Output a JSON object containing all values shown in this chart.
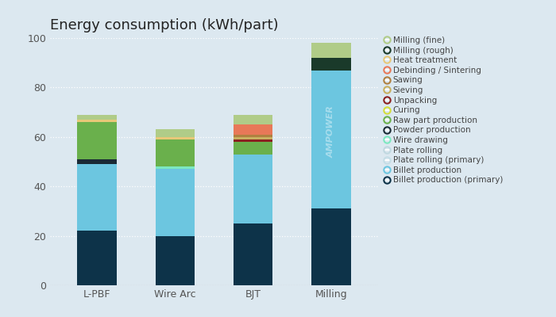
{
  "title": "Energy consumption (kWh/part)",
  "categories": [
    "L-PBF",
    "Wire Arc",
    "BJT",
    "Milling"
  ],
  "ylim": [
    0,
    100
  ],
  "yticks": [
    0,
    20,
    40,
    60,
    80,
    100
  ],
  "background_color": "#dce8f0",
  "gridcolor": "#ffffff",
  "layers": [
    {
      "label": "Billet production (primary)",
      "color": "#0d3349",
      "values": [
        22,
        20,
        25,
        31
      ]
    },
    {
      "label": "Billet production",
      "color": "#6cc6e0",
      "values": [
        27,
        27,
        28,
        56
      ]
    },
    {
      "label": "Plate rolling (primary)",
      "color": "#c5dde6",
      "values": [
        0,
        0,
        0,
        0
      ]
    },
    {
      "label": "Plate rolling",
      "color": "#c0d8e0",
      "values": [
        0,
        0,
        0,
        0
      ]
    },
    {
      "label": "Wire drawing",
      "color": "#7de8c0",
      "values": [
        0,
        1,
        0,
        0
      ]
    },
    {
      "label": "Powder production",
      "color": "#1a2a35",
      "values": [
        2,
        0,
        0,
        0
      ]
    },
    {
      "label": "Raw part production",
      "color": "#6ab04c",
      "values": [
        15,
        11,
        5,
        0
      ]
    },
    {
      "label": "Curing",
      "color": "#d4de3a",
      "values": [
        0,
        0,
        0,
        0
      ]
    },
    {
      "label": "Unpacking",
      "color": "#8b2020",
      "values": [
        0,
        0,
        1,
        0
      ]
    },
    {
      "label": "Sieving",
      "color": "#c8b060",
      "values": [
        0,
        0,
        1,
        0
      ]
    },
    {
      "label": "Sawing",
      "color": "#b08040",
      "values": [
        0,
        0,
        1,
        0
      ]
    },
    {
      "label": "Debinding / Sintering",
      "color": "#e87858",
      "values": [
        0,
        0,
        4,
        0
      ]
    },
    {
      "label": "Heat treatment",
      "color": "#e8c878",
      "values": [
        1,
        1,
        0,
        0
      ]
    },
    {
      "label": "Milling (rough)",
      "color": "#1a3a2a",
      "values": [
        0,
        0,
        0,
        5
      ]
    },
    {
      "label": "Milling (fine)",
      "color": "#b0cc88",
      "values": [
        2,
        3,
        4,
        6
      ]
    }
  ],
  "watermark": "AMPOWER",
  "bar_width": 0.5,
  "figsize": [
    7.0,
    4.0
  ],
  "dpi": 100,
  "title_fontsize": 13,
  "tick_fontsize": 9,
  "legend_fontsize": 7.5,
  "legend_labelspacing": 0.25,
  "legend_markersize": 6
}
